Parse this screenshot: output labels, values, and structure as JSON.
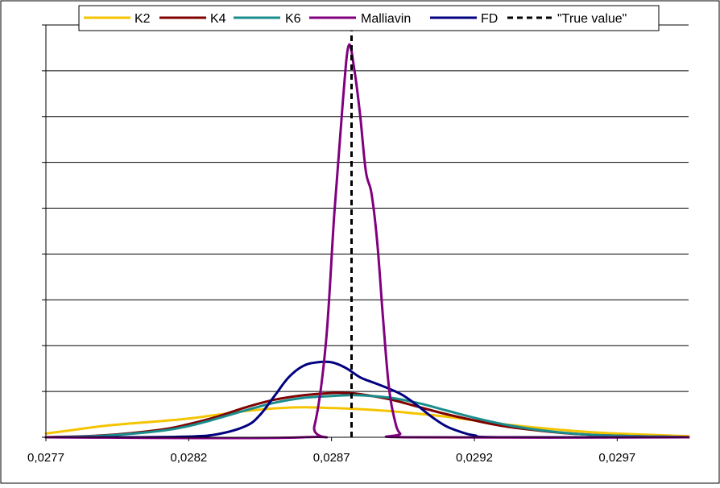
{
  "chart_data": {
    "type": "line",
    "title": "",
    "xlabel": "",
    "ylabel": "",
    "xlim": [
      0.0277,
      0.02995
    ],
    "ylim": [
      0,
      11
    ],
    "grid": "horizontal",
    "legend_position": "top",
    "x_tick_labels": [
      "0,0277",
      "0,0282",
      "0,0287",
      "0,0292",
      "0,0297"
    ],
    "x_tick_values": [
      0.0277,
      0.0282,
      0.0287,
      0.0292,
      0.0297
    ],
    "series": [
      {
        "name": "K2",
        "color": "#f5c400",
        "x": [
          0.0277,
          0.0278,
          0.0279,
          0.028,
          0.0281,
          0.0282,
          0.0283,
          0.0284,
          0.0285,
          0.0286,
          0.0287,
          0.0288,
          0.0289,
          0.029,
          0.0291,
          0.0292,
          0.0293,
          0.0294,
          0.0295,
          0.0296,
          0.0297,
          0.0298,
          0.0299,
          0.02995
        ],
        "y": [
          0.1,
          0.2,
          0.3,
          0.37,
          0.43,
          0.5,
          0.6,
          0.7,
          0.77,
          0.8,
          0.78,
          0.75,
          0.7,
          0.63,
          0.55,
          0.45,
          0.35,
          0.27,
          0.2,
          0.14,
          0.1,
          0.07,
          0.04,
          0.03
        ]
      },
      {
        "name": "K4",
        "color": "#800000",
        "x": [
          0.0277,
          0.0279,
          0.0281,
          0.0282,
          0.0283,
          0.0284,
          0.0285,
          0.0286,
          0.0287,
          0.02875,
          0.0288,
          0.0289,
          0.029,
          0.0291,
          0.0292,
          0.0293,
          0.0294,
          0.0295,
          0.0296,
          0.0297,
          0.0299,
          0.02995
        ],
        "y": [
          0.0,
          0.05,
          0.2,
          0.35,
          0.55,
          0.8,
          1.0,
          1.12,
          1.18,
          1.18,
          1.15,
          1.02,
          0.82,
          0.62,
          0.45,
          0.3,
          0.2,
          0.12,
          0.07,
          0.04,
          0.01,
          0.0
        ]
      },
      {
        "name": "K6",
        "color": "#1a8c8c",
        "x": [
          0.0277,
          0.0279,
          0.0281,
          0.0282,
          0.0283,
          0.0284,
          0.0285,
          0.0286,
          0.0287,
          0.02875,
          0.0288,
          0.0289,
          0.029,
          0.0291,
          0.0292,
          0.0293,
          0.0294,
          0.0295,
          0.0296,
          0.0297,
          0.0299,
          0.02995
        ],
        "y": [
          0.0,
          0.04,
          0.17,
          0.3,
          0.5,
          0.72,
          0.92,
          1.05,
          1.1,
          1.12,
          1.12,
          1.06,
          0.92,
          0.72,
          0.52,
          0.35,
          0.22,
          0.13,
          0.07,
          0.04,
          0.01,
          0.0
        ]
      },
      {
        "name": "Malliavin",
        "color": "#800080",
        "x": [
          0.0277,
          0.0286,
          0.02864,
          0.02868,
          0.02871,
          0.02874,
          0.02876,
          0.02878,
          0.0288,
          0.02882,
          0.02884,
          0.02886,
          0.02888,
          0.0289,
          0.02892,
          0.02894,
          0.02898,
          0.02995
        ],
        "y": [
          0.0,
          0.0,
          0.3,
          2.5,
          6.0,
          9.0,
          10.45,
          9.8,
          8.6,
          7.1,
          6.5,
          5.2,
          3.2,
          1.4,
          0.5,
          0.1,
          0.0,
          0.0
        ]
      },
      {
        "name": "FD",
        "color": "#000080",
        "x": [
          0.0277,
          0.028,
          0.0282,
          0.0283,
          0.0284,
          0.02845,
          0.0285,
          0.02855,
          0.0286,
          0.02865,
          0.0287,
          0.02875,
          0.0288,
          0.02885,
          0.0289,
          0.02895,
          0.029,
          0.02905,
          0.0291,
          0.02915,
          0.0292,
          0.0293,
          0.02995
        ],
        "y": [
          0.0,
          0.0,
          0.02,
          0.08,
          0.3,
          0.6,
          1.1,
          1.6,
          1.9,
          2.0,
          2.0,
          1.85,
          1.6,
          1.45,
          1.3,
          1.12,
          0.85,
          0.55,
          0.3,
          0.15,
          0.05,
          0.0,
          0.0
        ]
      },
      {
        "name": "\"True value\"",
        "color": "#000000",
        "dashed": true,
        "x": [
          0.02877,
          0.02877
        ],
        "y": [
          0,
          11
        ]
      }
    ]
  }
}
